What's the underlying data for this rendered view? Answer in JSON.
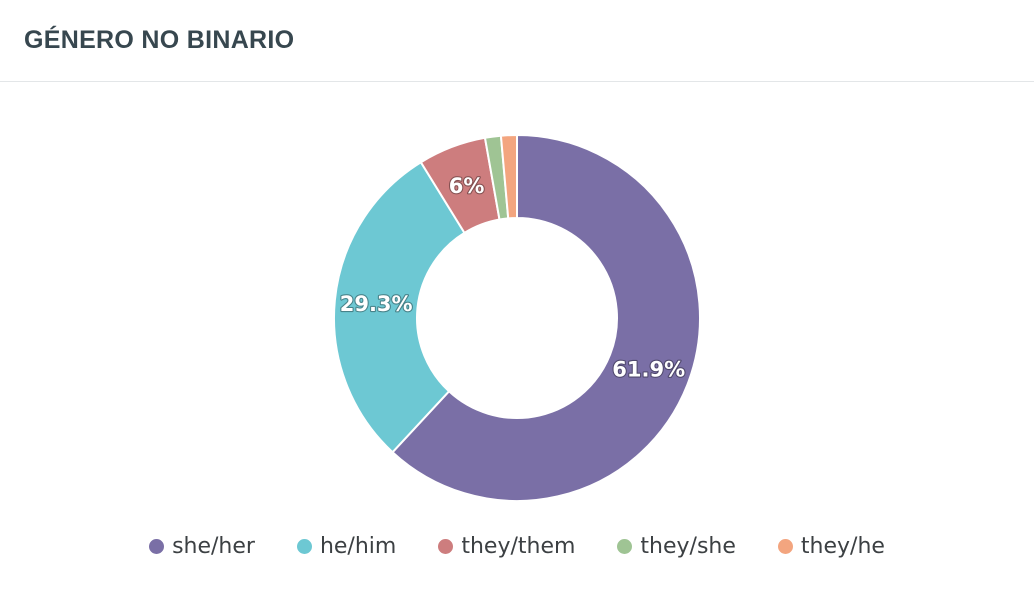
{
  "header": {
    "title": "GÉNERO NO BINARIO"
  },
  "chart_data": {
    "type": "pie",
    "donut": true,
    "title": "GÉNERO NO BINARIO",
    "legend_position": "bottom",
    "slices": [
      {
        "name": "she/her",
        "value": 61.9,
        "label": "61.9%",
        "color": "#7a6fa6"
      },
      {
        "name": "he/him",
        "value": 29.3,
        "label": "29.3%",
        "color": "#6dc8d3"
      },
      {
        "name": "they/them",
        "value": 6.0,
        "label": "6%",
        "color": "#cd7d7e"
      },
      {
        "name": "they/she",
        "value": 1.4,
        "label": "",
        "color": "#9fc494"
      },
      {
        "name": "they/he",
        "value": 1.4,
        "label": "",
        "color": "#f3a57f"
      }
    ]
  }
}
